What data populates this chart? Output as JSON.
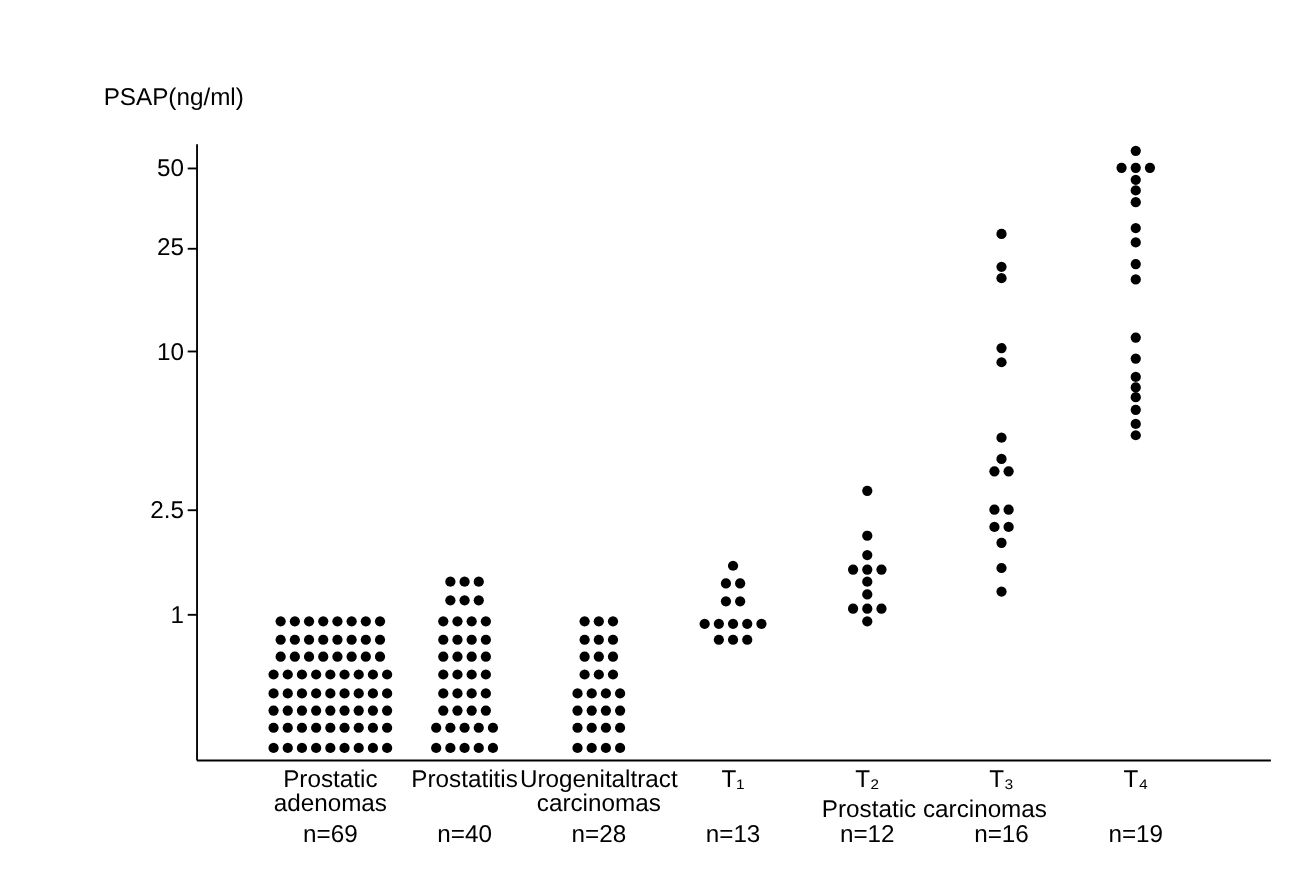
{
  "chart_data": {
    "type": "scatter",
    "ylabel": "PSAP(ng/ml)",
    "categories": [
      "Prostatic adenomas",
      "Prostatitis",
      "Urogenitaltract carcinomas",
      "T₁",
      "T₂",
      "T₃",
      "T₄"
    ],
    "log": "y",
    "ylim": [
      0.28,
      62
    ],
    "yticks": [
      1,
      2.5,
      10,
      25,
      50
    ],
    "grid": false,
    "legend": false,
    "marker": "circle",
    "annotations": [
      "n=69",
      "n=40",
      "n=28",
      "n=13",
      "n=12",
      "n=16",
      "n=19",
      "Prostatic carcinomas"
    ],
    "series": [
      {
        "color": "#000000",
        "x": [
          "Prostatic adenomas",
          "Prostatic adenomas",
          "Prostatic adenomas",
          "Prostatic adenomas",
          "Prostatic adenomas",
          "Prostatic adenomas",
          "Prostatic adenomas",
          "Prostatic adenomas",
          "Prostatic adenomas",
          "Prostatic adenomas",
          "Prostatic adenomas",
          "Prostatic adenomas",
          "Prostatic adenomas",
          "Prostatic adenomas",
          "Prostatic adenomas",
          "Prostatic adenomas",
          "Prostatic adenomas",
          "Prostatic adenomas",
          "Prostatic adenomas",
          "Prostatic adenomas",
          "Prostatic adenomas",
          "Prostatic adenomas",
          "Prostatic adenomas",
          "Prostatic adenomas",
          "Prostatic adenomas",
          "Prostatic adenomas",
          "Prostatic adenomas",
          "Prostatic adenomas",
          "Prostatic adenomas",
          "Prostatic adenomas",
          "Prostatic adenomas",
          "Prostatic adenomas",
          "Prostatic adenomas",
          "Prostatic adenomas",
          "Prostatic adenomas",
          "Prostatic adenomas",
          "Prostatic adenomas",
          "Prostatic adenomas",
          "Prostatic adenomas",
          "Prostatic adenomas",
          "Prostatic adenomas",
          "Prostatic adenomas",
          "Prostatic adenomas",
          "Prostatic adenomas",
          "Prostatic adenomas",
          "Prostatic adenomas",
          "Prostatic adenomas",
          "Prostatic adenomas",
          "Prostatic adenomas",
          "Prostatic adenomas",
          "Prostatic adenomas",
          "Prostatic adenomas",
          "Prostatic adenomas",
          "Prostatic adenomas",
          "Prostatic adenomas",
          "Prostatic adenomas",
          "Prostatic adenomas",
          "Prostatic adenomas",
          "Prostatic adenomas",
          "Prostatic adenomas",
          "Prostatic adenomas",
          "Prostatic adenomas",
          "Prostatic adenomas",
          "Prostatic adenomas",
          "Prostatic adenomas",
          "Prostatic adenomas",
          "Prostatic adenomas",
          "Prostatic adenomas",
          "Prostatic adenomas"
        ],
        "values": [
          0.94,
          0.94,
          0.94,
          0.94,
          0.94,
          0.94,
          0.94,
          0.94,
          0.8,
          0.8,
          0.8,
          0.8,
          0.8,
          0.8,
          0.8,
          0.8,
          0.69,
          0.69,
          0.69,
          0.69,
          0.69,
          0.69,
          0.69,
          0.69,
          0.59,
          0.59,
          0.59,
          0.59,
          0.59,
          0.59,
          0.59,
          0.59,
          0.59,
          0.5,
          0.5,
          0.5,
          0.5,
          0.5,
          0.5,
          0.5,
          0.5,
          0.5,
          0.43,
          0.43,
          0.43,
          0.43,
          0.43,
          0.43,
          0.43,
          0.43,
          0.43,
          0.37,
          0.37,
          0.37,
          0.37,
          0.37,
          0.37,
          0.37,
          0.37,
          0.37,
          0.31,
          0.31,
          0.31,
          0.31,
          0.31,
          0.31,
          0.31,
          0.31,
          0.31
        ]
      },
      {
        "color": "#000000",
        "x": [
          "Prostatitis",
          "Prostatitis",
          "Prostatitis",
          "Prostatitis",
          "Prostatitis",
          "Prostatitis",
          "Prostatitis",
          "Prostatitis",
          "Prostatitis",
          "Prostatitis",
          "Prostatitis",
          "Prostatitis",
          "Prostatitis",
          "Prostatitis",
          "Prostatitis",
          "Prostatitis",
          "Prostatitis",
          "Prostatitis",
          "Prostatitis",
          "Prostatitis",
          "Prostatitis",
          "Prostatitis",
          "Prostatitis",
          "Prostatitis",
          "Prostatitis",
          "Prostatitis",
          "Prostatitis",
          "Prostatitis",
          "Prostatitis",
          "Prostatitis",
          "Prostatitis",
          "Prostatitis",
          "Prostatitis",
          "Prostatitis",
          "Prostatitis",
          "Prostatitis",
          "Prostatitis",
          "Prostatitis",
          "Prostatitis",
          "Prostatitis"
        ],
        "values": [
          1.33,
          1.33,
          1.33,
          1.13,
          1.13,
          1.13,
          0.94,
          0.94,
          0.94,
          0.94,
          0.8,
          0.8,
          0.8,
          0.8,
          0.69,
          0.69,
          0.69,
          0.69,
          0.59,
          0.59,
          0.59,
          0.59,
          0.5,
          0.5,
          0.5,
          0.5,
          0.43,
          0.43,
          0.43,
          0.43,
          0.37,
          0.37,
          0.37,
          0.37,
          0.37,
          0.31,
          0.31,
          0.31,
          0.31,
          0.31
        ]
      },
      {
        "color": "#000000",
        "x": [
          "Urogenitaltract carcinomas",
          "Urogenitaltract carcinomas",
          "Urogenitaltract carcinomas",
          "Urogenitaltract carcinomas",
          "Urogenitaltract carcinomas",
          "Urogenitaltract carcinomas",
          "Urogenitaltract carcinomas",
          "Urogenitaltract carcinomas",
          "Urogenitaltract carcinomas",
          "Urogenitaltract carcinomas",
          "Urogenitaltract carcinomas",
          "Urogenitaltract carcinomas",
          "Urogenitaltract carcinomas",
          "Urogenitaltract carcinomas",
          "Urogenitaltract carcinomas",
          "Urogenitaltract carcinomas",
          "Urogenitaltract carcinomas",
          "Urogenitaltract carcinomas",
          "Urogenitaltract carcinomas",
          "Urogenitaltract carcinomas",
          "Urogenitaltract carcinomas",
          "Urogenitaltract carcinomas",
          "Urogenitaltract carcinomas",
          "Urogenitaltract carcinomas",
          "Urogenitaltract carcinomas",
          "Urogenitaltract carcinomas",
          "Urogenitaltract carcinomas",
          "Urogenitaltract carcinomas"
        ],
        "values": [
          0.94,
          0.94,
          0.94,
          0.8,
          0.8,
          0.8,
          0.69,
          0.69,
          0.69,
          0.59,
          0.59,
          0.59,
          0.5,
          0.5,
          0.5,
          0.5,
          0.43,
          0.43,
          0.43,
          0.43,
          0.37,
          0.37,
          0.37,
          0.37,
          0.31,
          0.31,
          0.31,
          0.31
        ]
      },
      {
        "color": "#000000",
        "x": [
          "T₁",
          "T₁",
          "T₁",
          "T₁",
          "T₁",
          "T₁",
          "T₁",
          "T₁",
          "T₁",
          "T₁",
          "T₁",
          "T₁",
          "T₁"
        ],
        "values": [
          1.53,
          1.31,
          1.31,
          1.12,
          1.12,
          0.92,
          0.92,
          0.92,
          0.92,
          0.92,
          0.8,
          0.8,
          0.8
        ]
      },
      {
        "color": "#000000",
        "x": [
          "T₂",
          "T₂",
          "T₂",
          "T₂",
          "T₂",
          "T₂",
          "T₂",
          "T₂",
          "T₂",
          "T₂",
          "T₂",
          "T₂"
        ],
        "values": [
          2.95,
          1.99,
          1.68,
          1.48,
          1.48,
          1.48,
          1.33,
          1.19,
          1.05,
          1.05,
          1.05,
          0.94
        ]
      },
      {
        "color": "#000000",
        "x": [
          "T₃",
          "T₃",
          "T₃",
          "T₃",
          "T₃",
          "T₃",
          "T₃",
          "T₃",
          "T₃",
          "T₃",
          "T₃",
          "T₃",
          "T₃",
          "T₃",
          "T₃",
          "T₃"
        ],
        "values": [
          28,
          21,
          19,
          10.3,
          9.1,
          4.7,
          3.9,
          3.5,
          3.5,
          2.5,
          2.5,
          2.15,
          2.15,
          1.87,
          1.5,
          1.22
        ]
      },
      {
        "color": "#000000",
        "x": [
          "T₄",
          "T₄",
          "T₄",
          "T₄",
          "T₄",
          "T₄",
          "T₄",
          "T₄",
          "T₄",
          "T₄",
          "T₄",
          "T₄",
          "T₄",
          "T₄",
          "T₄",
          "T₄",
          "T₄",
          "T₄",
          "T₄"
        ],
        "values": [
          58,
          50,
          50,
          50,
          45,
          41,
          37,
          29.5,
          26,
          21.5,
          18.8,
          11.3,
          9.4,
          8.0,
          7.3,
          6.7,
          6.0,
          5.3,
          4.8
        ]
      }
    ]
  }
}
